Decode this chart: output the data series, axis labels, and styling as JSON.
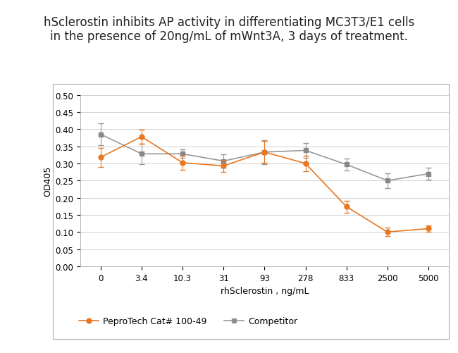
{
  "title_line1": "hSclerostin inhibits AP activity in differentiating MC3T3/E1 cells",
  "title_line2": "in the presence of 20ng/mL of mWnt3A, 3 days of treatment.",
  "xlabel": "rhSclerostin , ng/mL",
  "ylabel": "OD405",
  "x_labels": [
    "0",
    "3.4",
    "10.3",
    "31",
    "93",
    "278",
    "833",
    "2500",
    "5000"
  ],
  "x_positions": [
    0,
    1,
    2,
    3,
    4,
    5,
    6,
    7,
    8
  ],
  "pepro_y": [
    0.318,
    0.378,
    0.302,
    0.293,
    0.333,
    0.3,
    0.174,
    0.1,
    0.11
  ],
  "pepro_yerr": [
    0.028,
    0.02,
    0.02,
    0.018,
    0.032,
    0.022,
    0.018,
    0.012,
    0.01
  ],
  "comp_y": [
    0.385,
    0.328,
    0.328,
    0.307,
    0.333,
    0.338,
    0.297,
    0.25,
    0.27
  ],
  "comp_yerr": [
    0.032,
    0.03,
    0.012,
    0.02,
    0.035,
    0.022,
    0.018,
    0.022,
    0.018
  ],
  "pepro_color": "#E87722",
  "comp_color": "#999999",
  "pepro_marker_color": "#E87722",
  "comp_marker_color": "#888888",
  "pepro_label": "PeproTech Cat# 100-49",
  "comp_label": "Competitor",
  "ylim": [
    0.0,
    0.5
  ],
  "yticks": [
    0.0,
    0.05,
    0.1,
    0.15,
    0.2,
    0.25,
    0.3,
    0.35,
    0.4,
    0.45,
    0.5
  ],
  "bg_color": "#ffffff",
  "plot_bg": "#ffffff",
  "grid_color": "#d0d0d0",
  "outer_box_color": "#aaaaaa",
  "title_fontsize": 12,
  "axis_label_fontsize": 9,
  "tick_fontsize": 8.5,
  "legend_fontsize": 9
}
